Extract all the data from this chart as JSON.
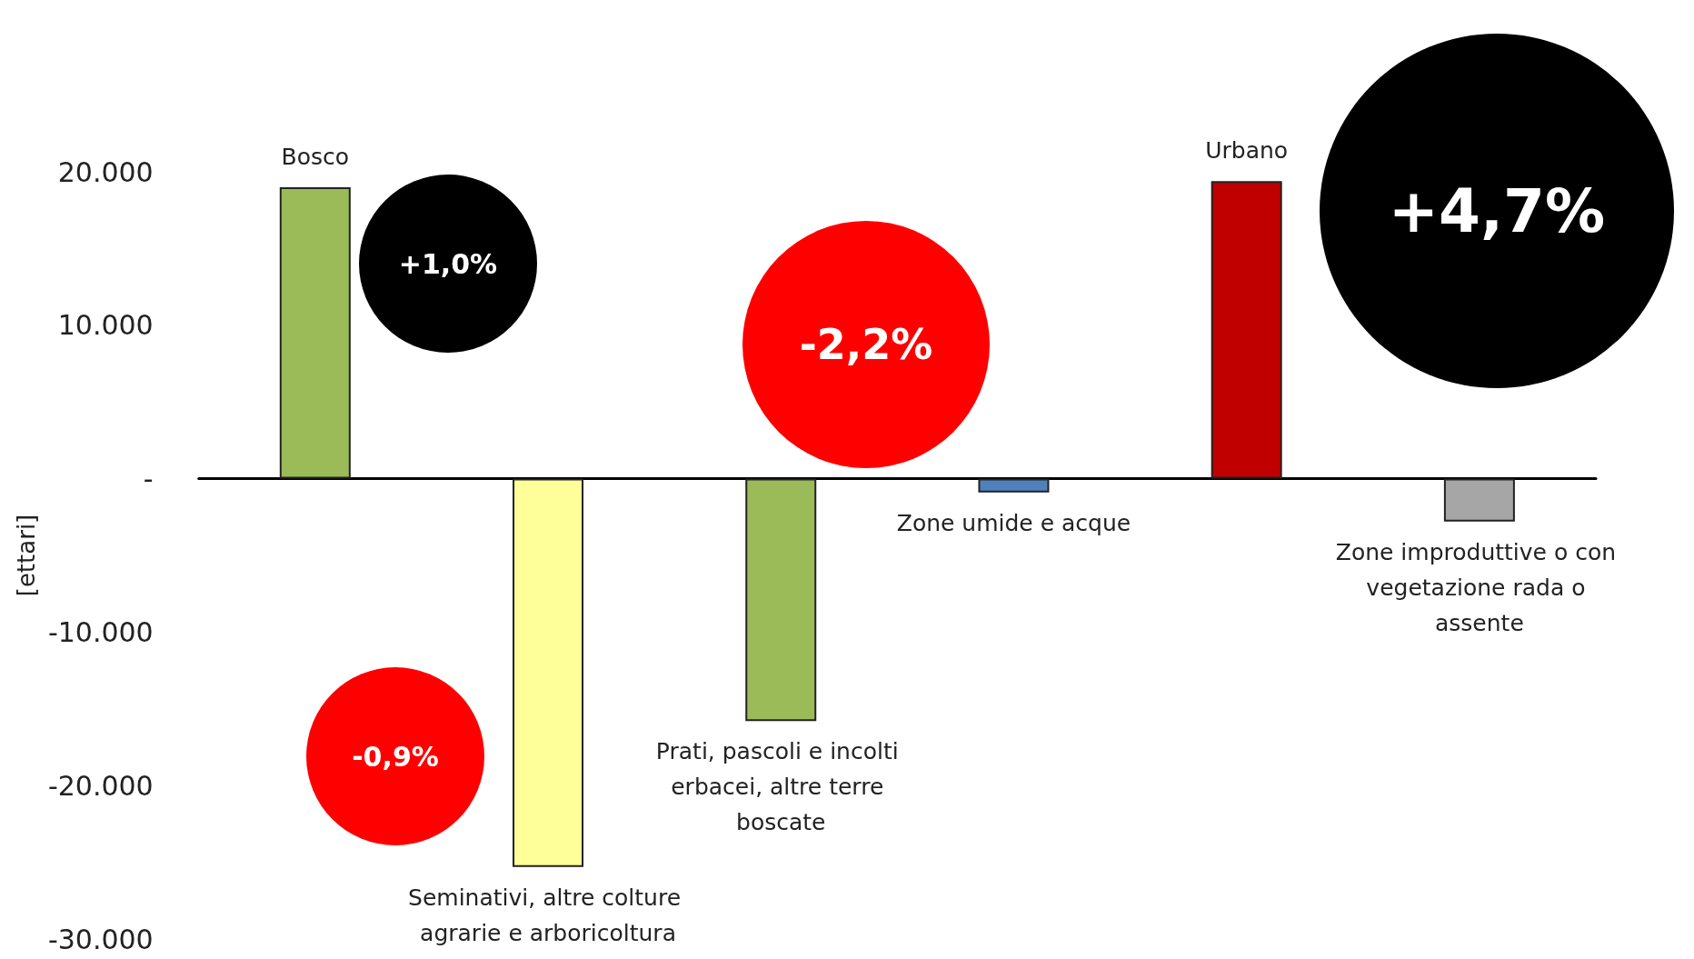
{
  "chart_data": {
    "type": "bar",
    "ylabel": "[ettari]",
    "categories": [
      "Bosco",
      "Seminativi, altre colture agrarie e arboricoltura",
      "Prati, pascoli e incolti erbacei, altre terre boscate",
      "Zone umide e acque",
      "Urbano",
      "Zone improduttive o con vegetazione rada o assente"
    ],
    "values": [
      19000,
      -25300,
      -15800,
      -900,
      19400,
      -2800
    ],
    "colors": [
      "#9bbb59",
      "#ffff99",
      "#9bbb59",
      "#4f81bd",
      "#c00000",
      "#a6a6a6"
    ],
    "annotations": [
      "+1,0%",
      "-0,9%",
      "-2,2%",
      "+4,7%"
    ],
    "ylim": [
      -30000,
      20000
    ],
    "yticks": [
      {
        "value": -30000,
        "label": "-30.000"
      },
      {
        "value": -20000,
        "label": "-20.000"
      },
      {
        "value": -10000,
        "label": "-10.000"
      },
      {
        "value": 0,
        "label": "-"
      },
      {
        "value": 10000,
        "label": "10.000"
      },
      {
        "value": 20000,
        "label": "20.000"
      }
    ],
    "tick_labels": "y"
  }
}
